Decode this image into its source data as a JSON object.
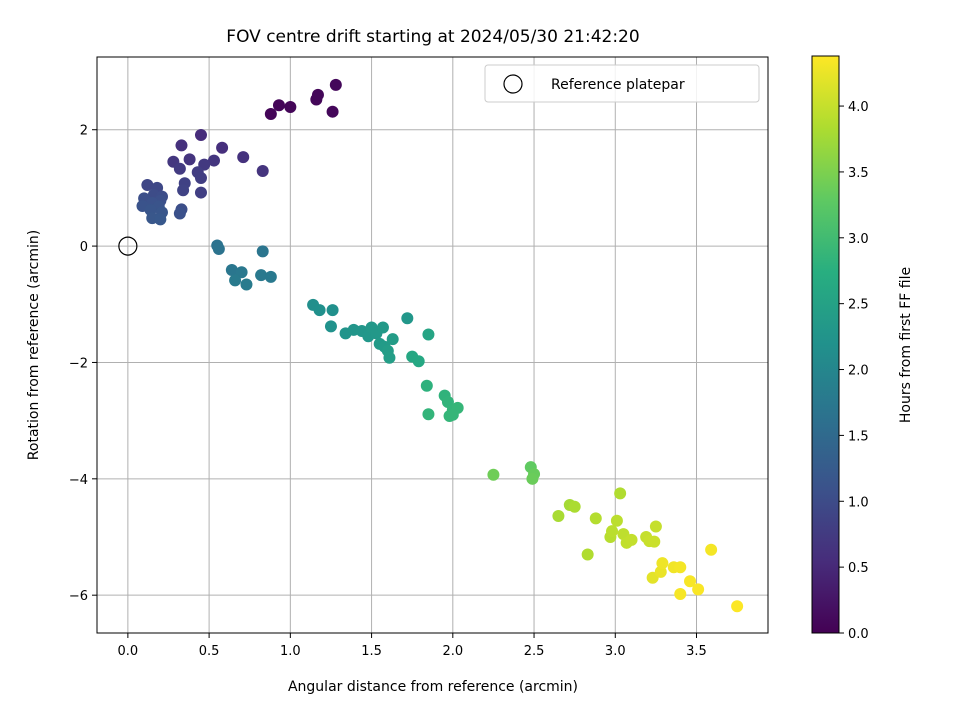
{
  "chart_data": {
    "type": "scatter",
    "title": "FOV centre drift starting at 2024/05/30 21:42:20",
    "xlabel": "Angular distance from reference (arcmin)",
    "ylabel": "Rotation from reference (arcmin)",
    "colorbar_label": "Hours from first FF file",
    "xlim": [
      -0.19,
      3.94
    ],
    "ylim": [
      -6.65,
      3.25
    ],
    "clim": [
      0.0,
      4.38
    ],
    "xticks": [
      0.0,
      0.5,
      1.0,
      1.5,
      2.0,
      2.5,
      3.0,
      3.5
    ],
    "xtick_labels": [
      "0.0",
      "0.5",
      "1.0",
      "1.5",
      "2.0",
      "2.5",
      "3.0",
      "3.5"
    ],
    "yticks": [
      2,
      0,
      -2,
      -4,
      -6
    ],
    "ytick_labels": [
      "2",
      "0",
      "−2",
      "−4",
      "−6"
    ],
    "cticks": [
      0.0,
      0.5,
      1.0,
      1.5,
      2.0,
      2.5,
      3.0,
      3.5,
      4.0
    ],
    "ctick_labels": [
      "0.0",
      "0.5",
      "1.0",
      "1.5",
      "2.0",
      "2.5",
      "3.0",
      "3.5",
      "4.0"
    ],
    "grid": true,
    "colormap": "viridis",
    "legend": {
      "placement": "top-right",
      "label": "Reference platepar"
    },
    "reference_point": {
      "x": 0.0,
      "y": 0.0
    },
    "points": [
      {
        "x": 0.88,
        "y": 2.27,
        "t": 0.05
      },
      {
        "x": 0.93,
        "y": 2.42,
        "t": 0.05
      },
      {
        "x": 1.0,
        "y": 2.39,
        "t": 0.06
      },
      {
        "x": 1.16,
        "y": 2.52,
        "t": 0.07
      },
      {
        "x": 1.17,
        "y": 2.6,
        "t": 0.07
      },
      {
        "x": 1.26,
        "y": 2.31,
        "t": 0.08
      },
      {
        "x": 1.28,
        "y": 2.77,
        "t": 0.08
      },
      {
        "x": 0.45,
        "y": 1.91,
        "t": 0.55
      },
      {
        "x": 0.58,
        "y": 1.69,
        "t": 0.58
      },
      {
        "x": 0.33,
        "y": 1.73,
        "t": 0.6
      },
      {
        "x": 0.71,
        "y": 1.53,
        "t": 0.62
      },
      {
        "x": 0.38,
        "y": 1.49,
        "t": 0.66
      },
      {
        "x": 0.53,
        "y": 1.47,
        "t": 0.68
      },
      {
        "x": 0.28,
        "y": 1.45,
        "t": 0.7
      },
      {
        "x": 0.47,
        "y": 1.4,
        "t": 0.72
      },
      {
        "x": 0.32,
        "y": 1.33,
        "t": 0.75
      },
      {
        "x": 0.83,
        "y": 1.29,
        "t": 0.66
      },
      {
        "x": 0.43,
        "y": 1.27,
        "t": 0.78
      },
      {
        "x": 0.45,
        "y": 1.17,
        "t": 0.8
      },
      {
        "x": 0.35,
        "y": 1.08,
        "t": 0.85
      },
      {
        "x": 0.12,
        "y": 1.05,
        "t": 0.92
      },
      {
        "x": 0.18,
        "y": 1.0,
        "t": 0.95
      },
      {
        "x": 0.34,
        "y": 0.96,
        "t": 0.88
      },
      {
        "x": 0.45,
        "y": 0.92,
        "t": 0.82
      },
      {
        "x": 0.16,
        "y": 0.88,
        "t": 1.0
      },
      {
        "x": 0.21,
        "y": 0.85,
        "t": 1.02
      },
      {
        "x": 0.1,
        "y": 0.82,
        "t": 1.05
      },
      {
        "x": 0.2,
        "y": 0.78,
        "t": 1.07
      },
      {
        "x": 0.15,
        "y": 0.74,
        "t": 1.1
      },
      {
        "x": 0.09,
        "y": 0.69,
        "t": 1.12
      },
      {
        "x": 0.19,
        "y": 0.68,
        "t": 1.13
      },
      {
        "x": 0.14,
        "y": 0.62,
        "t": 1.15
      },
      {
        "x": 0.21,
        "y": 0.58,
        "t": 1.16
      },
      {
        "x": 0.33,
        "y": 0.63,
        "t": 1.04
      },
      {
        "x": 0.32,
        "y": 0.56,
        "t": 1.08
      },
      {
        "x": 0.15,
        "y": 0.48,
        "t": 1.18
      },
      {
        "x": 0.2,
        "y": 0.46,
        "t": 1.2
      },
      {
        "x": 0.55,
        "y": 0.01,
        "t": 1.65
      },
      {
        "x": 0.56,
        "y": -0.05,
        "t": 1.66
      },
      {
        "x": 0.83,
        "y": -0.09,
        "t": 1.7
      },
      {
        "x": 0.64,
        "y": -0.41,
        "t": 1.72
      },
      {
        "x": 0.7,
        "y": -0.45,
        "t": 1.74
      },
      {
        "x": 0.82,
        "y": -0.5,
        "t": 1.76
      },
      {
        "x": 0.88,
        "y": -0.53,
        "t": 1.77
      },
      {
        "x": 0.66,
        "y": -0.59,
        "t": 1.79
      },
      {
        "x": 0.73,
        "y": -0.66,
        "t": 1.8
      },
      {
        "x": 1.14,
        "y": -1.01,
        "t": 2.15
      },
      {
        "x": 1.18,
        "y": -1.1,
        "t": 2.17
      },
      {
        "x": 1.26,
        "y": -1.1,
        "t": 2.18
      },
      {
        "x": 1.25,
        "y": -1.38,
        "t": 2.2
      },
      {
        "x": 1.72,
        "y": -1.24,
        "t": 2.3
      },
      {
        "x": 1.34,
        "y": -1.5,
        "t": 2.25
      },
      {
        "x": 1.39,
        "y": -1.44,
        "t": 2.27
      },
      {
        "x": 1.44,
        "y": -1.46,
        "t": 2.28
      },
      {
        "x": 1.48,
        "y": -1.55,
        "t": 2.3
      },
      {
        "x": 1.5,
        "y": -1.4,
        "t": 2.32
      },
      {
        "x": 1.53,
        "y": -1.5,
        "t": 2.33
      },
      {
        "x": 1.57,
        "y": -1.4,
        "t": 2.35
      },
      {
        "x": 1.55,
        "y": -1.68,
        "t": 2.36
      },
      {
        "x": 1.58,
        "y": -1.73,
        "t": 2.38
      },
      {
        "x": 1.63,
        "y": -1.6,
        "t": 2.4
      },
      {
        "x": 1.6,
        "y": -1.8,
        "t": 2.42
      },
      {
        "x": 1.61,
        "y": -1.92,
        "t": 2.44
      },
      {
        "x": 1.85,
        "y": -1.52,
        "t": 2.55
      },
      {
        "x": 1.75,
        "y": -1.9,
        "t": 2.6
      },
      {
        "x": 1.79,
        "y": -1.98,
        "t": 2.62
      },
      {
        "x": 1.84,
        "y": -2.4,
        "t": 2.8
      },
      {
        "x": 1.85,
        "y": -2.89,
        "t": 2.85
      },
      {
        "x": 1.95,
        "y": -2.57,
        "t": 2.82
      },
      {
        "x": 1.97,
        "y": -2.68,
        "t": 2.84
      },
      {
        "x": 2.0,
        "y": -2.82,
        "t": 2.86
      },
      {
        "x": 2.03,
        "y": -2.78,
        "t": 2.88
      },
      {
        "x": 1.98,
        "y": -2.92,
        "t": 2.87
      },
      {
        "x": 2.0,
        "y": -2.9,
        "t": 2.88
      },
      {
        "x": 2.25,
        "y": -3.93,
        "t": 3.4
      },
      {
        "x": 2.48,
        "y": -3.8,
        "t": 3.3
      },
      {
        "x": 2.5,
        "y": -3.92,
        "t": 3.35
      },
      {
        "x": 2.49,
        "y": -4.0,
        "t": 3.37
      },
      {
        "x": 2.65,
        "y": -4.64,
        "t": 3.8
      },
      {
        "x": 2.72,
        "y": -4.45,
        "t": 3.78
      },
      {
        "x": 2.75,
        "y": -4.48,
        "t": 3.82
      },
      {
        "x": 2.83,
        "y": -5.3,
        "t": 3.85
      },
      {
        "x": 2.88,
        "y": -4.68,
        "t": 3.88
      },
      {
        "x": 2.97,
        "y": -5.0,
        "t": 3.9
      },
      {
        "x": 2.98,
        "y": -4.9,
        "t": 3.92
      },
      {
        "x": 3.01,
        "y": -4.72,
        "t": 3.93
      },
      {
        "x": 3.03,
        "y": -4.25,
        "t": 3.85
      },
      {
        "x": 3.05,
        "y": -4.95,
        "t": 3.95
      },
      {
        "x": 3.07,
        "y": -5.1,
        "t": 3.97
      },
      {
        "x": 3.1,
        "y": -5.05,
        "t": 3.98
      },
      {
        "x": 3.19,
        "y": -5.0,
        "t": 4.0
      },
      {
        "x": 3.21,
        "y": -5.07,
        "t": 4.02
      },
      {
        "x": 3.24,
        "y": -5.08,
        "t": 4.03
      },
      {
        "x": 3.25,
        "y": -4.82,
        "t": 4.0
      },
      {
        "x": 3.23,
        "y": -5.7,
        "t": 4.2
      },
      {
        "x": 3.28,
        "y": -5.6,
        "t": 4.25
      },
      {
        "x": 3.29,
        "y": -5.45,
        "t": 4.28
      },
      {
        "x": 3.36,
        "y": -5.52,
        "t": 4.3
      },
      {
        "x": 3.4,
        "y": -5.52,
        "t": 4.32
      },
      {
        "x": 3.4,
        "y": -5.98,
        "t": 4.33
      },
      {
        "x": 3.46,
        "y": -5.76,
        "t": 4.34
      },
      {
        "x": 3.51,
        "y": -5.9,
        "t": 4.35
      },
      {
        "x": 3.59,
        "y": -5.22,
        "t": 4.32
      },
      {
        "x": 3.75,
        "y": -6.19,
        "t": 4.37
      }
    ]
  }
}
